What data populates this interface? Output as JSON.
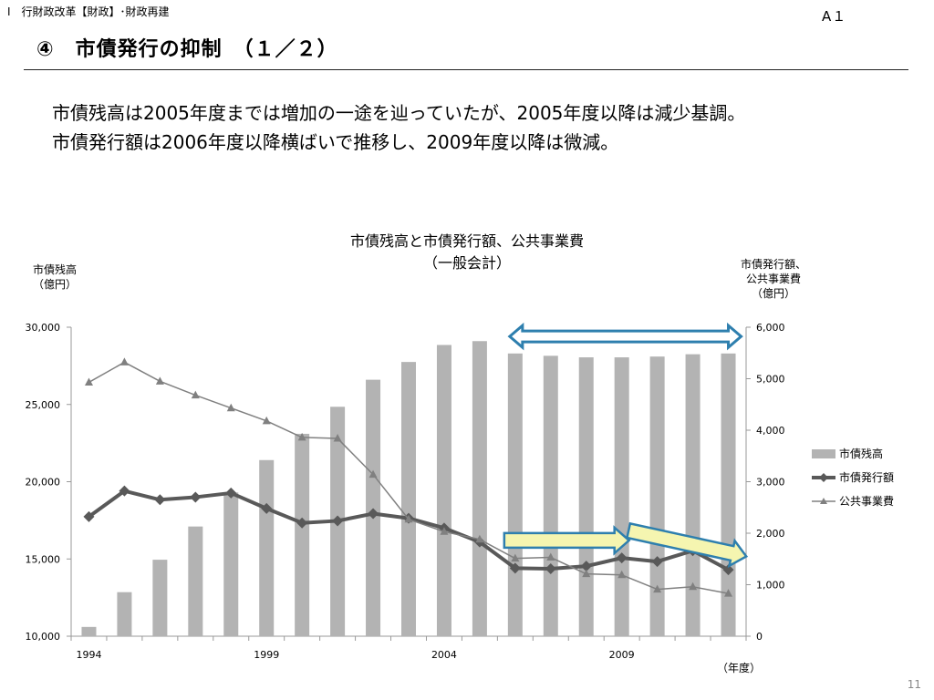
{
  "header": {
    "section": "Ⅰ　行財政改革【財政】･財政再建",
    "slide_id": "A１",
    "title": "④　市債発行の抑制　（１／２）"
  },
  "summary": {
    "line1": "市債残高は2005年度までは増加の一途を辿っていたが、2005年度以降は減少基調。",
    "line2": "市債発行額は2006年度以降横ばいで推移し、2009年度以降は微減。"
  },
  "page_number": "11",
  "chart_data": {
    "type": "bar",
    "title": "市債残高と市債発行額、公共事業費",
    "subtitle": "（一般会計）",
    "ylabel_left": [
      "市債残高",
      "（億円）"
    ],
    "ylabel_right": [
      "市債発行額、",
      "公共事業費",
      "（億円）"
    ],
    "xlabel": "（年度）",
    "x": [
      1994,
      1995,
      1996,
      1997,
      1998,
      1999,
      2000,
      2001,
      2002,
      2003,
      2004,
      2005,
      2006,
      2007,
      2008,
      2009,
      2010,
      2011,
      2012
    ],
    "x_ticks": [
      1994,
      1999,
      2004,
      2009
    ],
    "ylim_left": [
      10000,
      30000
    ],
    "yticks_left": [
      "10,000",
      "15,000",
      "20,000",
      "25,000",
      "30,000"
    ],
    "ylim_right": [
      0,
      6000
    ],
    "yticks_right": [
      "0",
      "1,000",
      "2,000",
      "3,000",
      "4,000",
      "5,000",
      "6,000"
    ],
    "grid": false,
    "legend_position": "right",
    "series": [
      {
        "name": "市債残高",
        "kind": "bar",
        "axis": "left",
        "color": "#b3b3b3",
        "values": [
          10600,
          12850,
          14950,
          17100,
          19300,
          21400,
          23100,
          24850,
          26600,
          27750,
          28850,
          29100,
          28300,
          28150,
          28050,
          28050,
          28100,
          28250,
          28300
        ]
      },
      {
        "name": "市債発行額",
        "kind": "line",
        "axis": "right",
        "color": "#595959",
        "marker": "diamond",
        "values": [
          2320,
          2820,
          2650,
          2700,
          2780,
          2480,
          2200,
          2240,
          2380,
          2290,
          2100,
          1830,
          1320,
          1310,
          1360,
          1520,
          1450,
          1660,
          1290
        ]
      },
      {
        "name": "公共事業費",
        "kind": "line",
        "axis": "right",
        "color": "#808080",
        "marker": "triangle",
        "values": [
          4930,
          5320,
          4950,
          4680,
          4430,
          4180,
          3860,
          3840,
          3140,
          2270,
          2030,
          1880,
          1510,
          1530,
          1210,
          1190,
          910,
          960,
          830
        ]
      }
    ],
    "annotations": [
      {
        "kind": "double-arrow",
        "color": "#2e7fae",
        "from_x": 2006,
        "to_x": 2012,
        "y_left": 29400
      },
      {
        "kind": "arrow",
        "color": "#2e7fae",
        "fill": "#f5f5b0",
        "from": [
          2006,
          1860
        ],
        "to": [
          2009,
          1860
        ]
      },
      {
        "kind": "arrow",
        "color": "#2e7fae",
        "fill": "#f5f5b0",
        "from": [
          2009.5,
          2050
        ],
        "to": [
          2012.3,
          1550
        ]
      }
    ]
  }
}
